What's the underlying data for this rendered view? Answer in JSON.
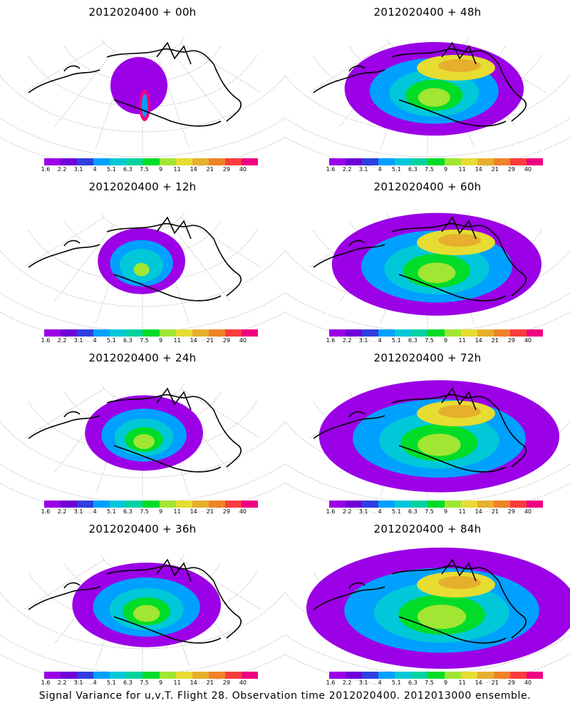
{
  "panels": [
    {
      "title": "2012020400  +  00h",
      "stage": 0
    },
    {
      "title": "2012020400  +  48h",
      "stage": 4
    },
    {
      "title": "2012020400  +  12h",
      "stage": 1
    },
    {
      "title": "2012020400  +  60h",
      "stage": 5
    },
    {
      "title": "2012020400  +  24h",
      "stage": 2
    },
    {
      "title": "2012020400  +  72h",
      "stage": 6
    },
    {
      "title": "2012020400  +  36h",
      "stage": 3
    },
    {
      "title": "2012020400  +  84h",
      "stage": 7
    }
  ],
  "colorbar": {
    "labels": [
      "1.6",
      "2.2",
      "3.1",
      "4",
      "5.1",
      "6.3",
      "7.5",
      "9",
      "11",
      "14",
      "21",
      "29",
      "40"
    ],
    "colors": [
      "#9b00e6",
      "#7000d8",
      "#2f3fe0",
      "#00a0ff",
      "#00c8d8",
      "#00d2a0",
      "#00dc28",
      "#a0e632",
      "#e6dc32",
      "#e6af2d",
      "#f08228",
      "#fa3c3c",
      "#f00082"
    ]
  },
  "caption": "Signal Variance for u,v,T. Flight 28. Observation time 2012020400. 2012013000 ensemble."
}
